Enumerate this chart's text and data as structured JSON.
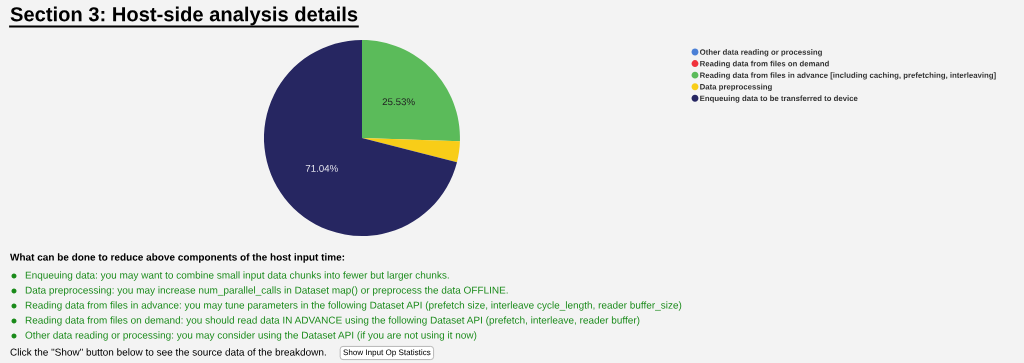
{
  "chart_data": {
    "type": "pie",
    "title": "Section 3: Host-side analysis details",
    "categories": [
      "Other data reading or processing",
      "Reading data from files on demand",
      "Reading data from files in advance [including caching, prefetching, interleaving]",
      "Data preprocessing",
      "Enqueuing data to be transferred to device"
    ],
    "values": [
      0,
      0,
      25.53,
      3.43,
      71.04
    ],
    "colors": [
      "#4a7fd6",
      "#f0323c",
      "#5bbb5a",
      "#f8cd18",
      "#262661"
    ],
    "value_labels": [
      null,
      null,
      "25.53%",
      null,
      "71.04%"
    ],
    "legend": "right",
    "annotations": [
      "What can be done to reduce above components of the host input time:",
      "Enqueuing data: you may want to combine small input data chunks into fewer but larger chunks.",
      "Data preprocessing: you may increase num_parallel_calls in Dataset map() or preprocess the data OFFLINE.",
      "Reading data from files in advance: you may tune parameters in the following Dataset API (prefetch size, interleave cycle_length, reader buffer_size)",
      "Reading data from files on demand: you should read data IN ADVANCE using the following Dataset API (prefetch, interleave, reader buffer)",
      "Other data reading or processing: you may consider using the Dataset API (if you are not using it now)",
      "Click the \"Show\" button below to see the source data of the breakdown.",
      "Show Input Op Statistics"
    ]
  }
}
